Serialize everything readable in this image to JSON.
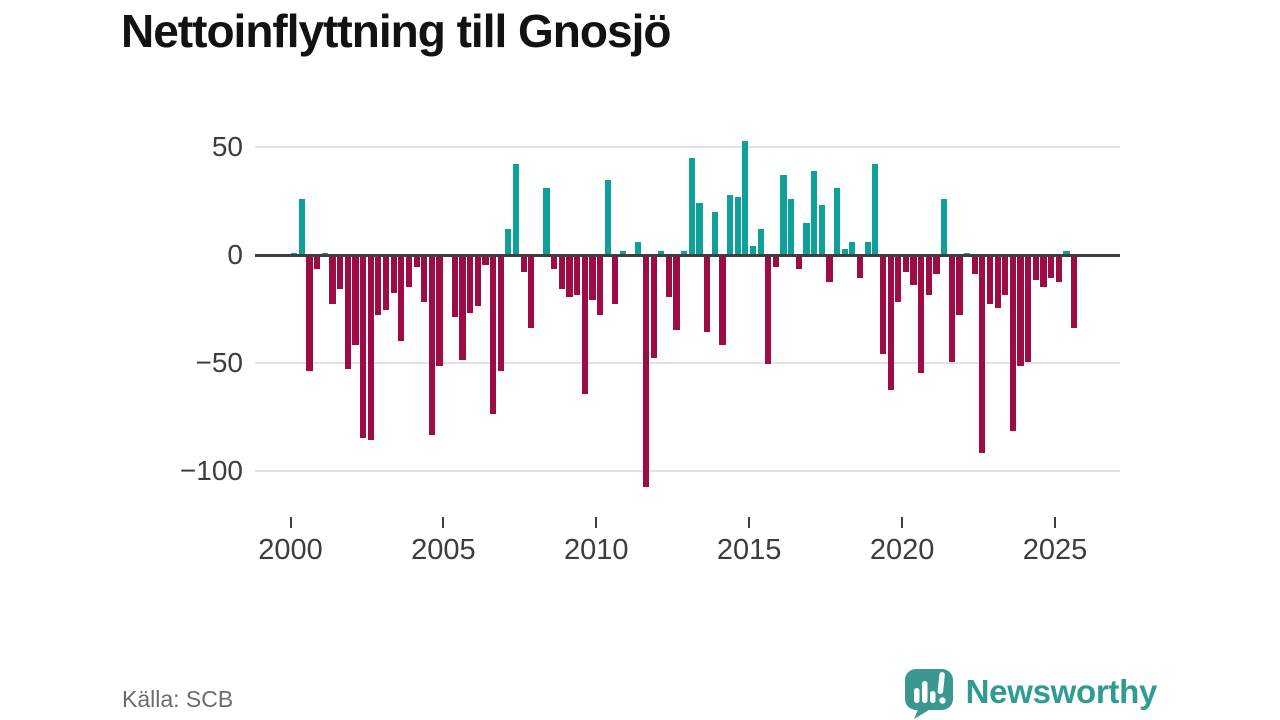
{
  "title": "Nettoinflyttning till Gnosjö",
  "source": "Källa: SCB",
  "branding": {
    "name": "Newsworthy",
    "logo_icon": "newsworthy-speech-bubble-chart-icon",
    "text_color": "#2f9c93",
    "bubble_color": "#3a988e"
  },
  "colors": {
    "positive_bar": "#10a09a",
    "negative_bar": "#9e0c46",
    "zero_line": "#3e3e3e",
    "gridline": "#e3e3e3",
    "axis_text": "#3d3d3d",
    "title_text": "#121212",
    "source_text": "#6b6b74",
    "background": "#ffffff"
  },
  "chart_data": {
    "type": "bar",
    "title": "Nettoinflyttning till Gnosjö",
    "xlabel": "",
    "ylabel": "",
    "frequency": "quarterly",
    "grid": "horizontal",
    "legend": "none",
    "ylim": [
      -112,
      58
    ],
    "y_ticks": [
      50,
      0,
      -50,
      -100
    ],
    "y_tick_labels": [
      "50",
      "0",
      "−50",
      "−100"
    ],
    "x_tick_years": [
      2000,
      2005,
      2010,
      2015,
      2020,
      2025
    ],
    "x_tick_labels": [
      "2000",
      "2005",
      "2010",
      "2015",
      "2020",
      "2025"
    ],
    "quarters": [
      "2000 Q1",
      "2000 Q2",
      "2000 Q3",
      "2000 Q4",
      "2001 Q1",
      "2001 Q2",
      "2001 Q3",
      "2001 Q4",
      "2002 Q1",
      "2002 Q2",
      "2002 Q3",
      "2002 Q4",
      "2003 Q1",
      "2003 Q2",
      "2003 Q3",
      "2003 Q4",
      "2004 Q1",
      "2004 Q2",
      "2004 Q3",
      "2004 Q4",
      "2005 Q1",
      "2005 Q2",
      "2005 Q3",
      "2005 Q4",
      "2006 Q1",
      "2006 Q2",
      "2006 Q3",
      "2006 Q4",
      "2007 Q1",
      "2007 Q2",
      "2007 Q3",
      "2007 Q4",
      "2008 Q1",
      "2008 Q2",
      "2008 Q3",
      "2008 Q4",
      "2009 Q1",
      "2009 Q2",
      "2009 Q3",
      "2009 Q4",
      "2010 Q1",
      "2010 Q2",
      "2010 Q3",
      "2010 Q4",
      "2011 Q1",
      "2011 Q2",
      "2011 Q3",
      "2011 Q4",
      "2012 Q1",
      "2012 Q2",
      "2012 Q3",
      "2012 Q4",
      "2013 Q1",
      "2013 Q2",
      "2013 Q3",
      "2013 Q4",
      "2014 Q1",
      "2014 Q2",
      "2014 Q3",
      "2014 Q4",
      "2015 Q1",
      "2015 Q2",
      "2015 Q3",
      "2015 Q4",
      "2016 Q1",
      "2016 Q2",
      "2016 Q3",
      "2016 Q4",
      "2017 Q1",
      "2017 Q2",
      "2017 Q3",
      "2017 Q4",
      "2018 Q1",
      "2018 Q2",
      "2018 Q3",
      "2018 Q4",
      "2019 Q1",
      "2019 Q2",
      "2019 Q3",
      "2019 Q4",
      "2020 Q1",
      "2020 Q2",
      "2020 Q3",
      "2020 Q4",
      "2021 Q1",
      "2021 Q2",
      "2021 Q3",
      "2021 Q4",
      "2022 Q1",
      "2022 Q2",
      "2022 Q3",
      "2022 Q4",
      "2023 Q1",
      "2023 Q2",
      "2023 Q3",
      "2023 Q4",
      "2024 Q1",
      "2024 Q2",
      "2024 Q3",
      "2024 Q4",
      "2025 Q1",
      "2025 Q2",
      "2025 Q3"
    ],
    "values": [
      1,
      26,
      -53,
      -6,
      1,
      -22,
      -15,
      -52,
      -41,
      -84,
      -85,
      -27,
      -25,
      -17,
      -39,
      -14,
      -5,
      -21,
      -83,
      -51,
      0,
      -28,
      -48,
      -26,
      -23,
      -4,
      -73,
      -53,
      12,
      42,
      -7,
      -33,
      0,
      31,
      -6,
      -15,
      -19,
      -18,
      -64,
      -20,
      -27,
      35,
      -22,
      2,
      0,
      6,
      -107,
      -47,
      2,
      -19,
      -34,
      2,
      45,
      24,
      -35,
      20,
      -41,
      28,
      27,
      53,
      4,
      12,
      -50,
      -5,
      37,
      26,
      -6,
      15,
      39,
      23,
      -12,
      31,
      3,
      6,
      -10,
      6,
      42,
      -45,
      -62,
      -21,
      -7,
      -13,
      -54,
      -18,
      -8,
      26,
      -49,
      -27,
      1,
      -8,
      -91,
      -22,
      -24,
      -18,
      -81,
      -51,
      -49,
      -11,
      -14,
      -10,
      -12,
      2,
      -33
    ]
  }
}
